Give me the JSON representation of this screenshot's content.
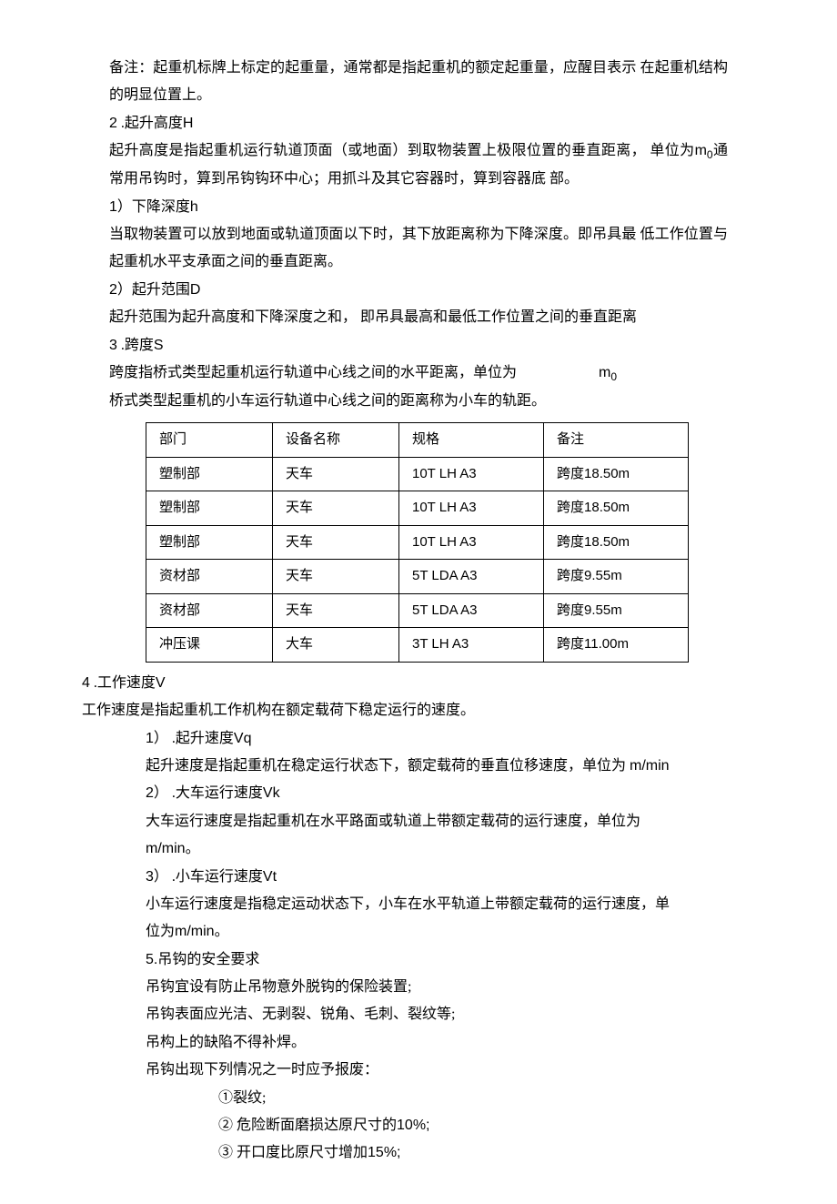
{
  "p_beizhu": "备注：起重机标牌上标定的起重量，通常都是指起重机的额定起重量，应醒目表示 在起重机结构的明显位置上。",
  "h2_num": "2",
  "h2_txt": " .起升高度",
  "h2_sym": "H",
  "p_h_desc1": "起升高度是指起重机运行轨道顶面（或地面）到取物装置上极限位置的垂直距离，  单位为",
  "p_h_desc_m": "m",
  "p_h_desc_sub": "0",
  "p_h_desc2": "通常用吊钩时，算到吊钩钩环中心；用抓斗及其它容器时，算到容器底 部。",
  "h21_num": "1",
  "h21_txt": "）下降深度",
  "h21_sym": "h",
  "p21": "当取物装置可以放到地面或轨道顶面以下时，其下放距离称为下降深度。即吊具最 低工作位置与起重机水平支承面之间的垂直距离。",
  "h22_num": "2",
  "h22_txt": "）起升范围",
  "h22_sym": "D",
  "p22": "起升范围为起升高度和下降深度之和，  即吊具最高和最低工作位置之间的垂直距离",
  "h3_num": "3",
  "h3_txt": " .跨度",
  "h3_sym": "S",
  "p3a": "跨度指桥式类型起重机运行轨道中心线之间的水平距离，单位为",
  "p3a_m": "m",
  "p3a_sub": "0",
  "p3b": "桥式类型起重机的小车运行轨道中心线之间的距离称为小车的轨距。",
  "table": {
    "headers": [
      "部门",
      "设备名称",
      "规格",
      "备注"
    ],
    "rows": [
      [
        "塑制部",
        "天车",
        "10T LH A3",
        "跨度18.50m"
      ],
      [
        "塑制部",
        "天车",
        "10T LH A3",
        "跨度18.50m"
      ],
      [
        "塑制部",
        "天车",
        "10T LH A3",
        "跨度18.50m"
      ],
      [
        "资材部",
        "天车",
        "5T LDA A3",
        "跨度9.55m"
      ],
      [
        "资材部",
        "天车",
        "5T LDA A3",
        "跨度9.55m"
      ],
      [
        "冲压课",
        "大车",
        "3T LH A3",
        "跨度11.00m"
      ]
    ]
  },
  "h4_num": "4",
  "h4_txt": " .工作速度",
  "h4_sym": "V",
  "p4": "工作速度是指起重机工作机构在额定载荷下稳定运行的速度。",
  "h41_num": "1",
  "h41_txt": "）  .起升速度",
  "h41_sym": "Vq",
  "p41a": "起升速度是指起重机在稳定运行状态下，额定载荷的垂直位移速度，单位为 ",
  "p41b": "m/min",
  "h42_num": "2",
  "h42_txt": "）  .大车运行速度",
  "h42_sym": "Vk",
  "p42": "大车运行速度是指起重机在水平路面或轨道上带额定载荷的运行速度，单位为",
  "p42b": "m/min",
  "p42c": "。",
  "h43_num": "3",
  "h43_txt": "）  .小车运行速度",
  "h43_sym": "Vt",
  "p43a": "小车运行速度是指稳定运动状态下，小车在水平轨道上带额定载荷的运行速度，单",
  "p43b1": "位为",
  "p43b2": "m/min",
  "p43b3": "。",
  "h5": "5.吊钩的安全要求",
  "p5a": "吊钩宜设有防止吊物意外脱钩的保险装置;",
  "p5b": "吊钩表面应光洁、无剥裂、锐角、毛刺、裂纹等;",
  "p5c": "吊构上的缺陷不得补焊。",
  "p5d": "吊钩出现下列情况之一时应予报废：",
  "li1": "①裂纹;",
  "li2a": "②  危险断面磨损达原尺寸的",
  "li2b": "10%;",
  "li3a": "③  开口度比原尺寸增加",
  "li3b": "15%;"
}
